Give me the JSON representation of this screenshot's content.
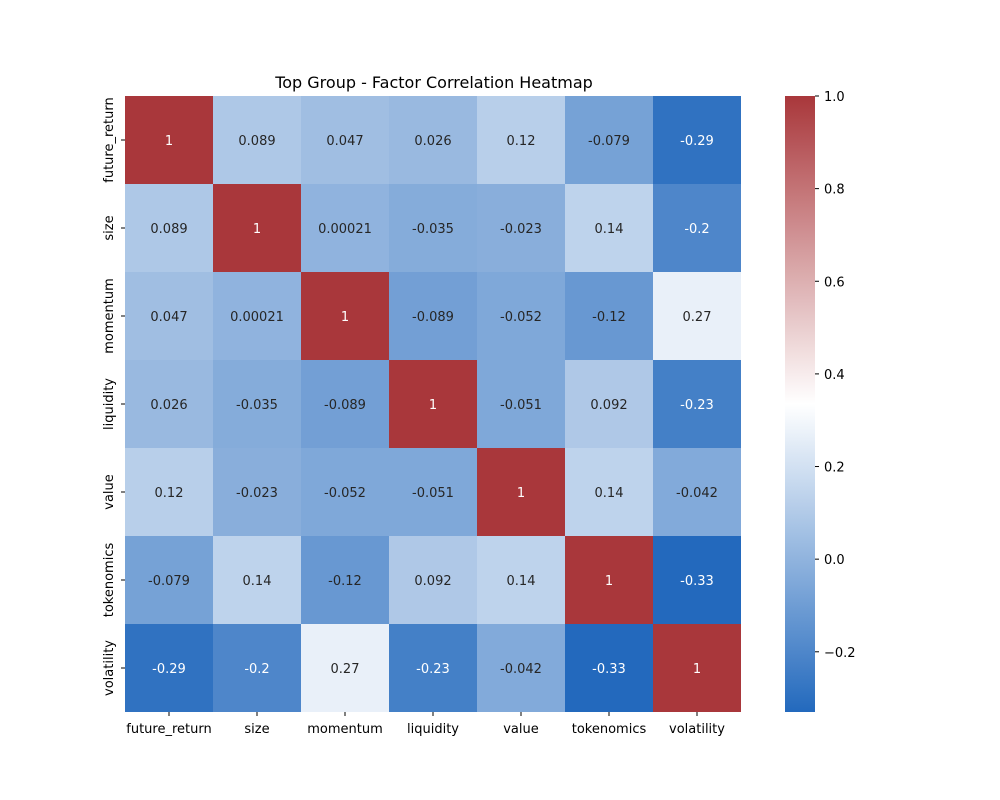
{
  "chart_data": {
    "type": "heatmap",
    "title": "Top Group - Factor Correlation Heatmap",
    "xlabel": "",
    "ylabel": "",
    "labels": [
      "future_return",
      "size",
      "momentum",
      "liquidity",
      "value",
      "tokenomics",
      "volatility"
    ],
    "matrix": [
      [
        1,
        0.089,
        0.047,
        0.026,
        0.12,
        -0.079,
        -0.29
      ],
      [
        0.089,
        1,
        0.00021,
        -0.035,
        -0.023,
        0.14,
        -0.2
      ],
      [
        0.047,
        0.00021,
        1,
        -0.089,
        -0.052,
        -0.12,
        0.27
      ],
      [
        0.026,
        -0.035,
        -0.089,
        1,
        -0.051,
        0.092,
        -0.23
      ],
      [
        0.12,
        -0.023,
        -0.052,
        -0.051,
        1,
        0.14,
        -0.042
      ],
      [
        -0.079,
        0.14,
        -0.12,
        0.092,
        0.14,
        1,
        -0.33
      ],
      [
        -0.29,
        -0.2,
        0.27,
        -0.23,
        -0.042,
        -0.33,
        1
      ]
    ],
    "annotations": [
      [
        "1",
        "0.089",
        "0.047",
        "0.026",
        "0.12",
        "-0.079",
        "-0.29"
      ],
      [
        "0.089",
        "1",
        "0.00021",
        "-0.035",
        "-0.023",
        "0.14",
        "-0.2"
      ],
      [
        "0.047",
        "0.00021",
        "1",
        "-0.089",
        "-0.052",
        "-0.12",
        "0.27"
      ],
      [
        "0.026",
        "-0.035",
        "-0.089",
        "1",
        "-0.051",
        "0.092",
        "-0.23"
      ],
      [
        "0.12",
        "-0.023",
        "-0.052",
        "-0.051",
        "1",
        "0.14",
        "-0.042"
      ],
      [
        "-0.079",
        "0.14",
        "-0.12",
        "0.092",
        "0.14",
        "1",
        "-0.33"
      ],
      [
        "-0.29",
        "-0.2",
        "0.27",
        "-0.23",
        "-0.042",
        "-0.33",
        "1"
      ]
    ],
    "colorbar": {
      "vmin": -0.33,
      "vmax": 1.0,
      "ticks": [
        1.0,
        0.8,
        0.6,
        0.4,
        0.2,
        0.0,
        -0.2
      ],
      "tick_labels": [
        "1.0",
        "0.8",
        "0.6",
        "0.4",
        "0.2",
        "0.0",
        "−0.2"
      ],
      "colormap": "vlag",
      "colors": {
        "low": "#2369bd",
        "mid": "#ffffff",
        "high": "#a9373b"
      }
    },
    "grid": false
  }
}
